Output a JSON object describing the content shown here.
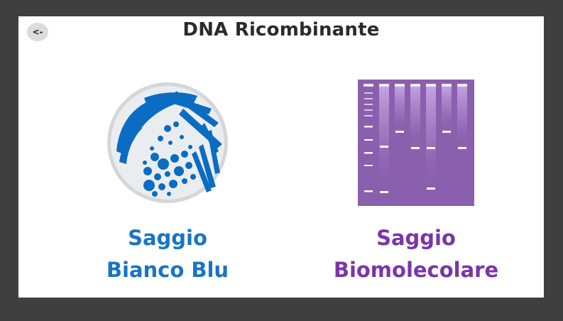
{
  "header": {
    "title": "DNA Ricombinante",
    "back_label": "<-"
  },
  "options": [
    {
      "line1": "Saggio",
      "line2": "Bianco Blu",
      "icon": "petri-dish-icon",
      "color": "#1a74c4"
    },
    {
      "line1": "Saggio",
      "line2": "Biomolecolare",
      "icon": "gel-electrophoresis-icon",
      "color": "#7a35a8"
    }
  ],
  "colors": {
    "background": "#3f3f3f",
    "panel": "#ffffff",
    "blue": "#1a74c4",
    "purple": "#7a35a8",
    "gel": "#8a5fae"
  }
}
